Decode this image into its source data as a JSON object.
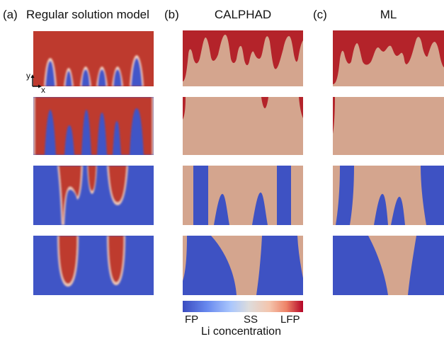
{
  "panels": {
    "a": {
      "letter": "(a)",
      "title": "Regular solution model"
    },
    "b": {
      "letter": "(b)",
      "title": "CALPHAD"
    },
    "c": {
      "letter": "(c)",
      "title": "ML"
    }
  },
  "axes": {
    "y": "y",
    "x": "x"
  },
  "colorbar": {
    "label": "Li concentration",
    "tick_low": "FP",
    "tick_mid": "SS",
    "tick_high": "LFP",
    "colors": {
      "low": "#3b4cc0",
      "mid": "#dddcdc",
      "high": "#b40426"
    }
  }
}
